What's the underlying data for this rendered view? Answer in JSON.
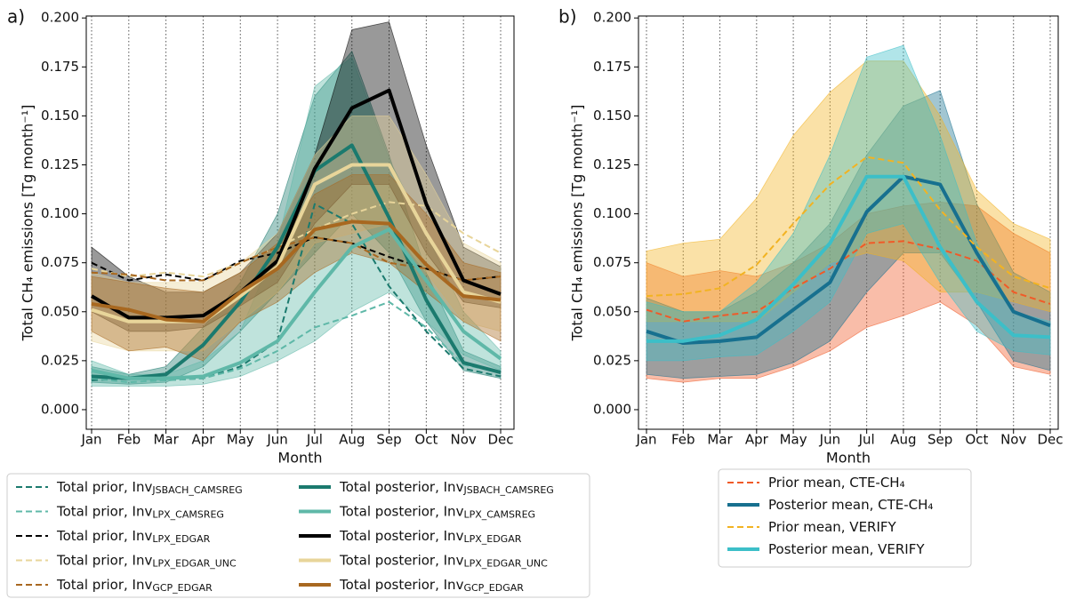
{
  "chart_data": [
    {
      "type": "line",
      "title": "a)",
      "xlabel": "Month",
      "ylabel": "Total CH₄ emissions [Tg month⁻¹]",
      "categories": [
        "Jan",
        "Feb",
        "Mar",
        "Apr",
        "May",
        "Jun",
        "Jul",
        "Aug",
        "Sep",
        "Oct",
        "Nov",
        "Dec"
      ],
      "ylim": [
        -0.01,
        0.201
      ],
      "yticks": [
        {
          "value": 0,
          "label": "0.000"
        },
        {
          "value": 0.025,
          "label": "0.025"
        },
        {
          "value": 0.05,
          "label": "0.050"
        },
        {
          "value": 0.075,
          "label": "0.075"
        },
        {
          "value": 0.1,
          "label": "0.100"
        },
        {
          "value": 0.125,
          "label": "0.125"
        },
        {
          "value": 0.15,
          "label": "0.150"
        },
        {
          "value": 0.175,
          "label": "0.175"
        },
        {
          "value": 0.2,
          "label": "0.200"
        }
      ],
      "grid": true,
      "legend_columns": 2,
      "series": [
        {
          "name": "Total prior,  Inv",
          "name_sub": "JSBACH_CAMSREG",
          "color": "#1b7a6e",
          "dashed": true,
          "values": [
            0.015,
            0.016,
            0.015,
            0.016,
            0.022,
            0.035,
            0.105,
            0.095,
            0.063,
            0.04,
            0.021,
            0.017
          ]
        },
        {
          "name": "Total prior, Inv",
          "name_sub": "LPX_CAMSREG",
          "color": "#5fb8a8",
          "dashed": true,
          "values": [
            0.016,
            0.014,
            0.015,
            0.016,
            0.021,
            0.03,
            0.042,
            0.048,
            0.055,
            0.042,
            0.023,
            0.019
          ]
        },
        {
          "name": "Total prior, Inv",
          "name_sub": "LPX_EDGAR",
          "color": "#000000",
          "dashed": true,
          "values": [
            0.075,
            0.066,
            0.069,
            0.066,
            0.076,
            0.08,
            0.088,
            0.085,
            0.078,
            0.072,
            0.066,
            0.068
          ]
        },
        {
          "name": "Total prior, Inv",
          "name_sub": "LPX_EDGAR_UNC",
          "color": "#e8d59a",
          "dashed": true,
          "values": [
            0.072,
            0.068,
            0.07,
            0.068,
            0.075,
            0.083,
            0.092,
            0.1,
            0.106,
            0.104,
            0.09,
            0.08
          ]
        },
        {
          "name": "Total prior, Inv",
          "name_sub": "GCP_EDGAR",
          "color": "#a86820",
          "dashed": true,
          "values": [
            0.07,
            0.069,
            0.066,
            0.066,
            0.075,
            0.083,
            0.088,
            0.085,
            0.075,
            0.072,
            0.066,
            0.068
          ]
        },
        {
          "name": "Total posterior,  Inv",
          "name_sub": "JSBACH_CAMSREG",
          "color": "#1b7a6e",
          "dashed": false,
          "values": [
            0.017,
            0.016,
            0.018,
            0.033,
            0.055,
            0.083,
            0.122,
            0.135,
            0.098,
            0.056,
            0.024,
            0.019
          ],
          "lower": [
            0.014,
            0.013,
            0.014,
            0.022,
            0.04,
            0.06,
            0.08,
            0.1,
            0.08,
            0.045,
            0.02,
            0.016
          ],
          "upper": [
            0.022,
            0.018,
            0.022,
            0.042,
            0.065,
            0.1,
            0.16,
            0.183,
            0.13,
            0.07,
            0.03,
            0.022
          ]
        },
        {
          "name": "Total posterior, Inv",
          "name_sub": "LPX_CAMSREG",
          "color": "#5fb8a8",
          "dashed": false,
          "values": [
            0.02,
            0.016,
            0.016,
            0.017,
            0.024,
            0.035,
            0.06,
            0.083,
            0.092,
            0.066,
            0.04,
            0.026
          ],
          "lower": [
            0.012,
            0.012,
            0.012,
            0.013,
            0.017,
            0.025,
            0.035,
            0.05,
            0.06,
            0.045,
            0.028,
            0.02
          ],
          "upper": [
            0.025,
            0.018,
            0.018,
            0.025,
            0.04,
            0.085,
            0.165,
            0.18,
            0.128,
            0.09,
            0.05,
            0.03
          ]
        },
        {
          "name": "Total posterior, Inv",
          "name_sub": "LPX_EDGAR",
          "color": "#000000",
          "dashed": false,
          "values": [
            0.058,
            0.047,
            0.047,
            0.048,
            0.06,
            0.076,
            0.123,
            0.154,
            0.163,
            0.105,
            0.066,
            0.059
          ],
          "lower": [
            0.05,
            0.04,
            0.04,
            0.042,
            0.053,
            0.065,
            0.095,
            0.115,
            0.115,
            0.08,
            0.055,
            0.052
          ],
          "upper": [
            0.083,
            0.068,
            0.06,
            0.06,
            0.07,
            0.09,
            0.13,
            0.194,
            0.198,
            0.135,
            0.083,
            0.073
          ]
        },
        {
          "name": "Total posterior, Inv",
          "name_sub": "LPX_EDGAR_UNC",
          "color": "#e8d59a",
          "dashed": false,
          "values": [
            0.051,
            0.045,
            0.045,
            0.045,
            0.058,
            0.073,
            0.115,
            0.125,
            0.125,
            0.09,
            0.06,
            0.055
          ],
          "lower": [
            0.035,
            0.03,
            0.03,
            0.03,
            0.045,
            0.06,
            0.085,
            0.09,
            0.095,
            0.07,
            0.045,
            0.04
          ],
          "upper": [
            0.07,
            0.065,
            0.065,
            0.065,
            0.075,
            0.09,
            0.13,
            0.15,
            0.15,
            0.12,
            0.085,
            0.075
          ]
        },
        {
          "name": "Total posterior, Inv",
          "name_sub": "GCP_EDGAR",
          "color": "#a86820",
          "dashed": false,
          "values": [
            0.054,
            0.051,
            0.046,
            0.045,
            0.06,
            0.072,
            0.092,
            0.096,
            0.095,
            0.074,
            0.058,
            0.056
          ],
          "lower": [
            0.04,
            0.03,
            0.032,
            0.025,
            0.045,
            0.055,
            0.07,
            0.08,
            0.075,
            0.06,
            0.045,
            0.035
          ],
          "upper": [
            0.068,
            0.065,
            0.062,
            0.06,
            0.07,
            0.085,
            0.11,
            0.12,
            0.12,
            0.1,
            0.075,
            0.07
          ]
        }
      ]
    },
    {
      "type": "line",
      "title": "b)",
      "xlabel": "Month",
      "ylabel": "Total CH₄ emissions [Tg month⁻¹]",
      "categories": [
        "Jan",
        "Feb",
        "Mar",
        "Apr",
        "May",
        "Jun",
        "Jul",
        "Aug",
        "Sep",
        "Oct",
        "Nov",
        "Dec"
      ],
      "ylim": [
        -0.01,
        0.201
      ],
      "yticks": [
        {
          "value": 0,
          "label": "0.000"
        },
        {
          "value": 0.025,
          "label": "0.025"
        },
        {
          "value": 0.05,
          "label": "0.050"
        },
        {
          "value": 0.075,
          "label": "0.075"
        },
        {
          "value": 0.1,
          "label": "0.100"
        },
        {
          "value": 0.125,
          "label": "0.125"
        },
        {
          "value": 0.15,
          "label": "0.150"
        },
        {
          "value": 0.175,
          "label": "0.175"
        },
        {
          "value": 0.2,
          "label": "0.200"
        }
      ],
      "grid": true,
      "legend_columns": 1,
      "series": [
        {
          "name": "Prior mean, CTE-CH₄",
          "color": "#f05a28",
          "dashed": true,
          "values": [
            0.051,
            0.045,
            0.048,
            0.05,
            0.062,
            0.072,
            0.085,
            0.086,
            0.082,
            0.076,
            0.06,
            0.054
          ],
          "lower": [
            0.016,
            0.014,
            0.016,
            0.016,
            0.022,
            0.03,
            0.042,
            0.048,
            0.055,
            0.043,
            0.022,
            0.018
          ],
          "upper": [
            0.075,
            0.068,
            0.071,
            0.068,
            0.075,
            0.085,
            0.1,
            0.104,
            0.106,
            0.104,
            0.09,
            0.08
          ]
        },
        {
          "name": "Posterior mean, CTE-CH₄",
          "color": "#17708f",
          "dashed": false,
          "values": [
            0.04,
            0.034,
            0.035,
            0.037,
            0.051,
            0.065,
            0.101,
            0.119,
            0.115,
            0.08,
            0.05,
            0.043
          ],
          "lower": [
            0.018,
            0.016,
            0.017,
            0.018,
            0.024,
            0.035,
            0.06,
            0.08,
            0.08,
            0.055,
            0.025,
            0.02
          ],
          "upper": [
            0.057,
            0.05,
            0.05,
            0.06,
            0.075,
            0.095,
            0.13,
            0.155,
            0.163,
            0.105,
            0.07,
            0.06
          ]
        },
        {
          "name": "Prior mean, VERIFY",
          "color": "#f2b322",
          "dashed": true,
          "values": [
            0.058,
            0.059,
            0.062,
            0.074,
            0.095,
            0.115,
            0.129,
            0.126,
            0.102,
            0.083,
            0.068,
            0.062
          ],
          "lower": [
            0.045,
            0.045,
            0.045,
            0.045,
            0.06,
            0.075,
            0.08,
            0.076,
            0.06,
            0.06,
            0.055,
            0.05
          ],
          "upper": [
            0.081,
            0.085,
            0.087,
            0.108,
            0.14,
            0.162,
            0.178,
            0.178,
            0.15,
            0.112,
            0.095,
            0.087
          ]
        },
        {
          "name": "Posterior mean, VERIFY",
          "color": "#3cbfc8",
          "dashed": false,
          "values": [
            0.035,
            0.035,
            0.038,
            0.046,
            0.064,
            0.085,
            0.119,
            0.119,
            0.083,
            0.055,
            0.038,
            0.037
          ],
          "lower": [
            0.025,
            0.025,
            0.027,
            0.028,
            0.04,
            0.055,
            0.09,
            0.095,
            0.065,
            0.04,
            0.03,
            0.028
          ],
          "upper": [
            0.055,
            0.05,
            0.05,
            0.065,
            0.09,
            0.13,
            0.18,
            0.186,
            0.14,
            0.085,
            0.05,
            0.045
          ]
        }
      ]
    }
  ]
}
